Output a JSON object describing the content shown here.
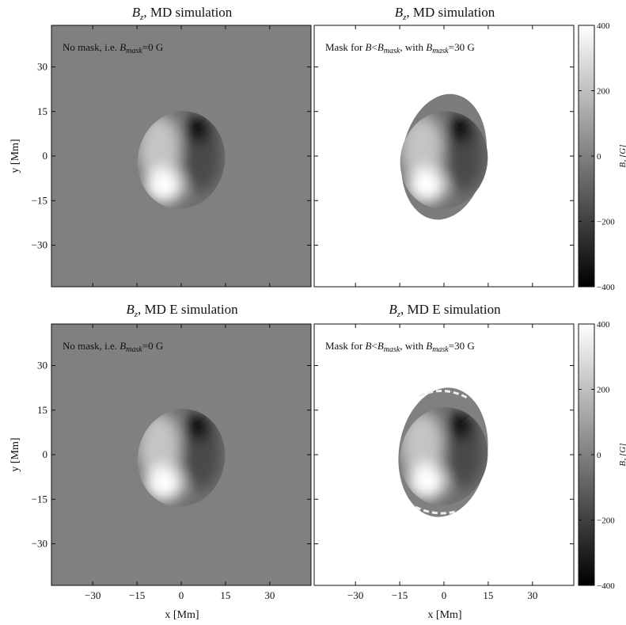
{
  "panel_titles": {
    "p1": {
      "sym": "B",
      "sub": "z",
      "rest": ", MD simulation"
    },
    "p2": {
      "sym": "B",
      "sub": "z",
      "rest": ", MD simulation"
    },
    "p3": {
      "sym": "B",
      "sub": "z",
      "rest": ", MD E simulation"
    },
    "p4": {
      "sym": "B",
      "sub": "z",
      "rest": ", MD E simulation"
    }
  },
  "notes": {
    "nomask": {
      "pre": "No mask, i.e. ",
      "sym": "B",
      "sub": "mask",
      "post": "=0 G"
    },
    "mask": {
      "pre": "Mask for ",
      "b": "B",
      "lt": "<",
      "sym": "B",
      "sub": "mask",
      "mid": ", with ",
      "sym2": "B",
      "sub2": "mask",
      "post": "=30 G"
    }
  },
  "axes": {
    "xlabel": "x [Mm]",
    "ylabel": "y [Mm]",
    "colorbar_label": {
      "sym": "B",
      "sub": "z",
      "unit": " [G]"
    },
    "xticks": [
      "−30",
      "−15",
      "0",
      "15",
      "30"
    ],
    "yticks": [
      "30",
      "15",
      "0",
      "−15",
      "−30"
    ],
    "cbticks": [
      "400",
      "200",
      "0",
      "−200",
      "−400"
    ]
  },
  "chart_data": [
    {
      "type": "heatmap",
      "simulation": "MD",
      "mask_threshold_G": 0,
      "xlim": [
        -44,
        44
      ],
      "ylim": [
        -44,
        44
      ],
      "zlim": [
        -400,
        400
      ],
      "features": {
        "positive_peak_G": 400,
        "negative_peak_G": -400,
        "background_G": 0
      }
    },
    {
      "type": "heatmap",
      "simulation": "MD",
      "mask_threshold_G": 30,
      "xlim": [
        -44,
        44
      ],
      "ylim": [
        -44,
        44
      ],
      "zlim": [
        -400,
        400
      ],
      "features": {
        "positive_peak_G": 400,
        "negative_peak_G": -400,
        "masked_region": "outside"
      }
    },
    {
      "type": "heatmap",
      "simulation": "MD E",
      "mask_threshold_G": 0,
      "xlim": [
        -44,
        44
      ],
      "ylim": [
        -44,
        44
      ],
      "zlim": [
        -400,
        400
      ],
      "features": {
        "positive_peak_G": 400,
        "negative_peak_G": -400,
        "background_G": 0
      }
    },
    {
      "type": "heatmap",
      "simulation": "MD E",
      "mask_threshold_G": 30,
      "xlim": [
        -44,
        44
      ],
      "ylim": [
        -44,
        44
      ],
      "zlim": [
        -400,
        400
      ],
      "features": {
        "positive_peak_G": 400,
        "negative_peak_G": -400,
        "masked_region": "outside"
      }
    }
  ],
  "colors": {
    "background_gray": "#808080",
    "masked": "#ffffff",
    "frame": "#111111"
  }
}
